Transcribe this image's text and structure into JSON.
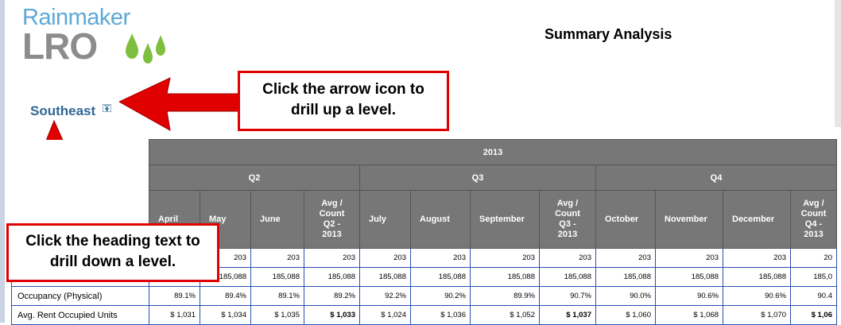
{
  "logo": {
    "top": "Rainmaker",
    "bottom": "LRO"
  },
  "page_title": "Summary Analysis",
  "drill": {
    "heading": "Southeast"
  },
  "callouts": {
    "up": {
      "line1": "Click the arrow icon to",
      "line2": "drill up a level."
    },
    "down": {
      "line1": "Click the heading text to",
      "line2": "drill down a level."
    }
  },
  "table": {
    "year": "2013",
    "quarters": [
      "Q2",
      "Q3",
      "Q4"
    ],
    "months": {
      "q2": [
        "April",
        "May",
        "June"
      ],
      "q2_avg": [
        "Avg /",
        "Count",
        "Q2 -",
        "2013"
      ],
      "q3": [
        "July",
        "August",
        "September"
      ],
      "q3_avg": [
        "Avg /",
        "Count",
        "Q3 -",
        "2013"
      ],
      "q4": [
        "October",
        "November",
        "December"
      ],
      "q4_avg": [
        "Avg /",
        "Count",
        "Q4 -",
        "2013"
      ]
    },
    "rows": [
      {
        "label": "",
        "values": [
          "",
          "203",
          "203",
          "203",
          "203",
          "203",
          "203",
          "203",
          "203",
          "203",
          "203",
          "20"
        ]
      },
      {
        "label": "",
        "values": [
          "",
          "185,088",
          "185,088",
          "185,088",
          "185,088",
          "185,088",
          "185,088",
          "185,088",
          "185,088",
          "185,088",
          "185,088",
          "185,0"
        ]
      },
      {
        "label": "Occupancy (Physical)",
        "values": [
          "89.1%",
          "89.4%",
          "89.1%",
          "89.2%",
          "92.2%",
          "90.2%",
          "89.9%",
          "90.7%",
          "90.0%",
          "90.6%",
          "90.6%",
          "90.4"
        ]
      },
      {
        "label": "Avg. Rent Occupied Units",
        "values": [
          "$ 1,031",
          "$ 1,034",
          "$ 1,035",
          "$ 1,033",
          "$ 1,024",
          "$ 1,036",
          "$ 1,052",
          "$ 1,037",
          "$ 1,060",
          "$ 1,068",
          "$ 1,070",
          "$ 1,06"
        ]
      }
    ]
  }
}
